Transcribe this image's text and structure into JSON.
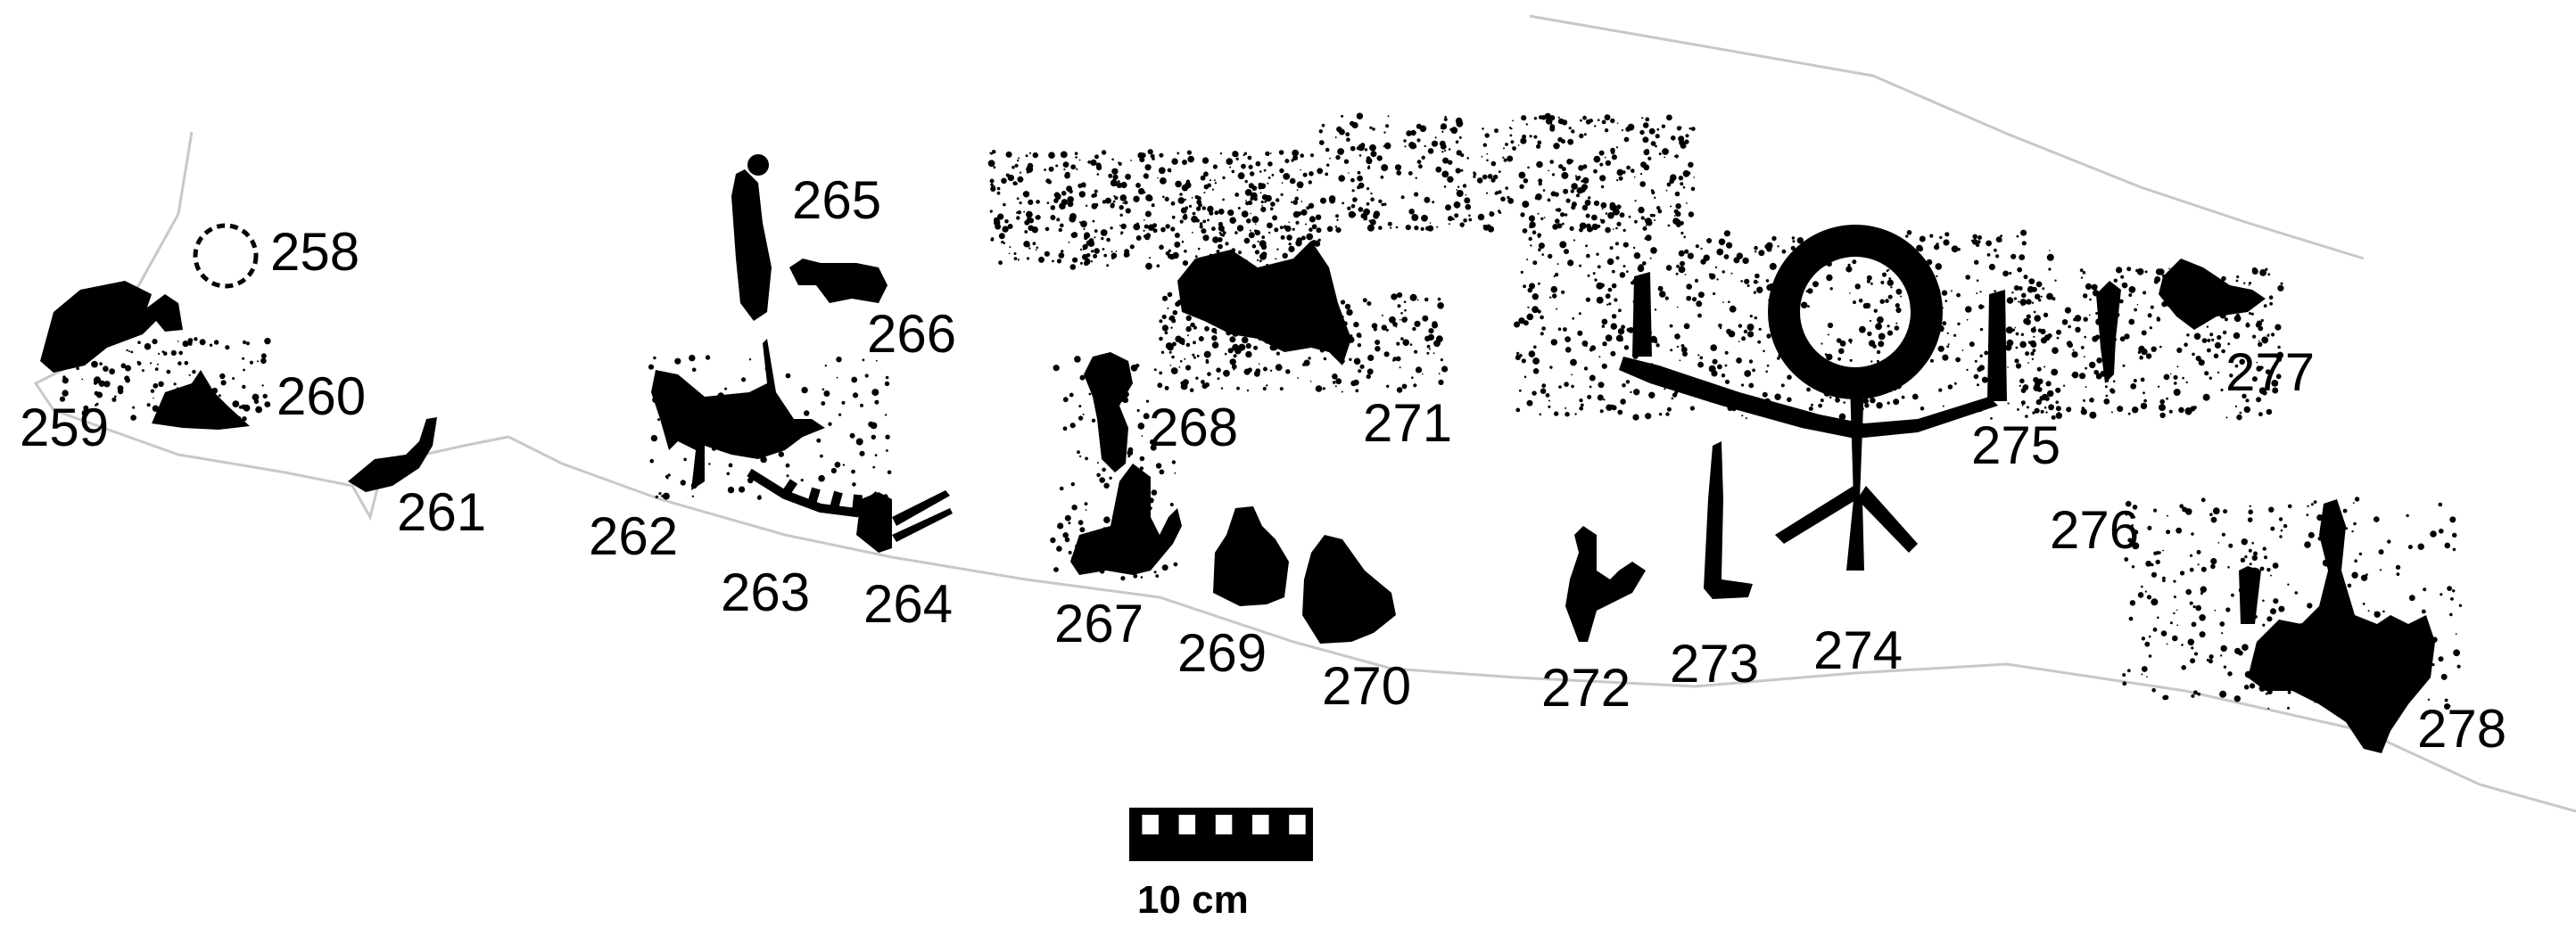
{
  "figure_labels": [
    "258",
    "259",
    "260",
    "261",
    "262",
    "263",
    "264",
    "265",
    "266",
    "267",
    "268",
    "269",
    "270",
    "271",
    "272",
    "273",
    "274",
    "275",
    "276",
    "277",
    "278"
  ],
  "scale_bar": {
    "label": "10 cm",
    "segments": 5
  },
  "colors": {
    "ink": "#000000",
    "outline": "#c8c8c8",
    "background": "#ffffff"
  }
}
